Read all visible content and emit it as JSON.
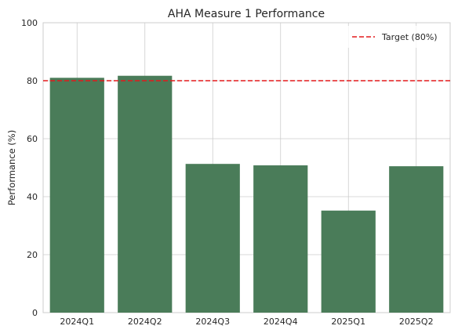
{
  "chart_data": {
    "type": "bar",
    "title": "AHA Measure 1 Performance",
    "xlabel": "",
    "ylabel": "Performance (%)",
    "categories": [
      "2024Q1",
      "2024Q2",
      "2024Q3",
      "2024Q4",
      "2025Q1",
      "2025Q2"
    ],
    "values": [
      81.0,
      81.7,
      51.3,
      50.8,
      35.2,
      50.5
    ],
    "ylim": [
      0,
      100
    ],
    "yticks": [
      0,
      20,
      40,
      60,
      80,
      100
    ],
    "bar_color": "#4a7c59",
    "grid": true,
    "target": {
      "value": 80,
      "label": "Target (80%)",
      "color": "#e31a1c",
      "style": "dashed"
    },
    "legend_position": "top-right"
  }
}
